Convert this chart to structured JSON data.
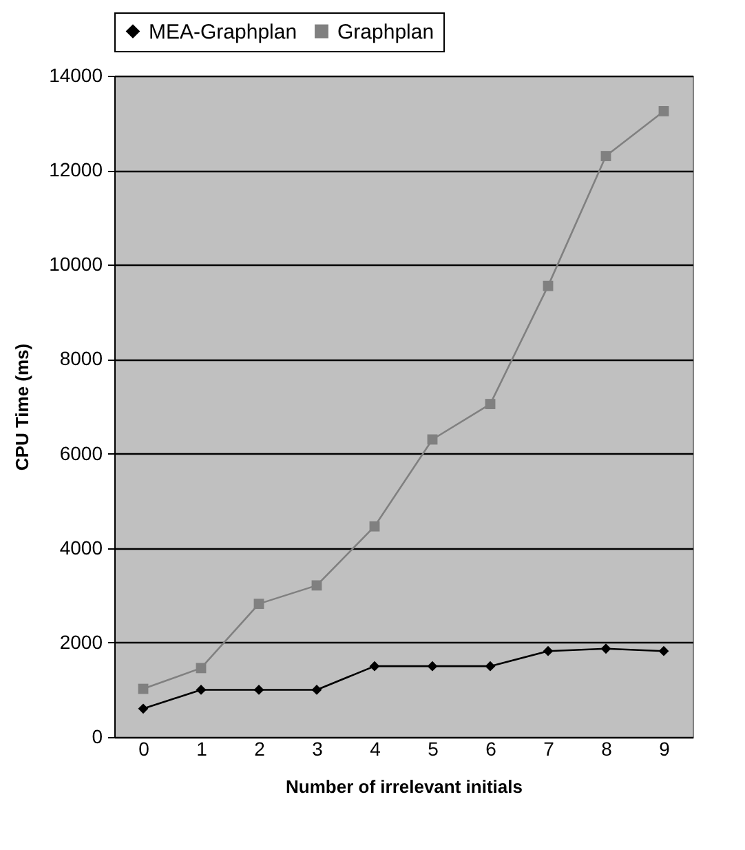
{
  "chart_data": {
    "type": "line",
    "xlabel": "Number of irrelevant initials",
    "ylabel": "CPU Time (ms)",
    "categories": [
      "0",
      "1",
      "2",
      "3",
      "4",
      "5",
      "6",
      "7",
      "8",
      "9"
    ],
    "series": [
      {
        "name": "MEA-Graphplan",
        "color": "#000000",
        "marker": "diamond",
        "values": [
          600,
          1000,
          1000,
          1000,
          1500,
          1500,
          1500,
          1820,
          1870,
          1820
        ]
      },
      {
        "name": "Graphplan",
        "color": "#808080",
        "marker": "square",
        "values": [
          1020,
          1460,
          2820,
          3210,
          4460,
          6300,
          7050,
          9550,
          12300,
          13250
        ]
      }
    ],
    "ylim": [
      0,
      14000
    ],
    "yticks": [
      0,
      2000,
      4000,
      6000,
      8000,
      10000,
      12000,
      14000
    ],
    "grid": "y",
    "legend": "top"
  }
}
